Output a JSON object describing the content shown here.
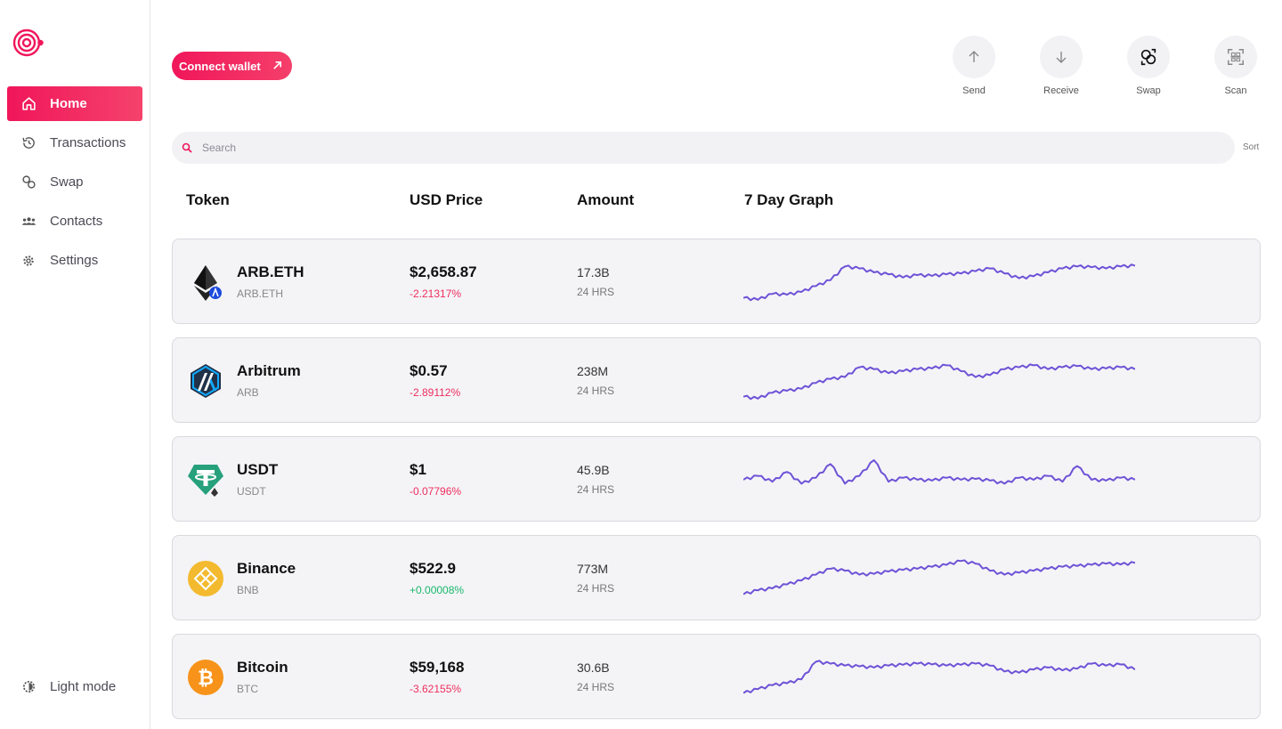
{
  "sidebar": {
    "items": [
      {
        "label": "Home",
        "icon": "home-icon",
        "active": true
      },
      {
        "label": "Transactions",
        "icon": "history-icon",
        "active": false
      },
      {
        "label": "Swap",
        "icon": "swap-icon",
        "active": false
      },
      {
        "label": "Contacts",
        "icon": "contacts-icon",
        "active": false
      },
      {
        "label": "Settings",
        "icon": "gear-icon",
        "active": false
      }
    ],
    "theme_toggle": {
      "label": "Light mode",
      "icon": "theme-icon"
    }
  },
  "header": {
    "connect_label": "Connect wallet",
    "actions": [
      {
        "label": "Send",
        "icon": "arrow-up-icon"
      },
      {
        "label": "Receive",
        "icon": "arrow-down-icon"
      },
      {
        "label": "Swap",
        "icon": "swap-icon"
      },
      {
        "label": "Scan",
        "icon": "qr-scan-icon"
      }
    ]
  },
  "search": {
    "placeholder": "Search",
    "value": "",
    "sort_label": "Sort"
  },
  "table": {
    "headers": {
      "token": "Token",
      "price": "USD Price",
      "amount": "Amount",
      "graph": "7 Day Graph"
    },
    "rows": [
      {
        "name": "ARB.ETH",
        "symbol": "ARB.ETH",
        "price": "$2,658.87",
        "change": "-2.21317%",
        "direction": "neg",
        "amount": "17.3B",
        "period": "24 HRS",
        "logo": "eth-arbitrum-icon",
        "trend": [
          0.1,
          0.05,
          0.2,
          0.18,
          0.25,
          0.4,
          0.55,
          0.9,
          0.85,
          0.75,
          0.7,
          0.62,
          0.68,
          0.66,
          0.7,
          0.72,
          0.78,
          0.85,
          0.72,
          0.6,
          0.65,
          0.75,
          0.85,
          0.9,
          0.88,
          0.85,
          0.9,
          0.92
        ]
      },
      {
        "name": "Arbitrum",
        "symbol": "ARB",
        "price": "$0.57",
        "change": "-2.89112%",
        "direction": "neg",
        "amount": "238M",
        "period": "24 HRS",
        "logo": "arbitrum-icon",
        "trend": [
          0.1,
          0.05,
          0.2,
          0.25,
          0.3,
          0.45,
          0.55,
          0.6,
          0.85,
          0.8,
          0.7,
          0.75,
          0.8,
          0.82,
          0.9,
          0.75,
          0.6,
          0.65,
          0.8,
          0.85,
          0.9,
          0.8,
          0.85,
          0.88,
          0.8,
          0.82,
          0.85,
          0.8
        ]
      },
      {
        "name": "USDT",
        "symbol": "USDT",
        "price": "$1",
        "change": "-0.07796%",
        "direction": "neg",
        "amount": "45.9B",
        "period": "24 HRS",
        "logo": "tether-icon",
        "trend": [
          0.5,
          0.6,
          0.45,
          0.7,
          0.4,
          0.55,
          0.9,
          0.4,
          0.6,
          1.0,
          0.45,
          0.55,
          0.5,
          0.48,
          0.55,
          0.5,
          0.52,
          0.48,
          0.4,
          0.55,
          0.5,
          0.6,
          0.45,
          0.85,
          0.5,
          0.48,
          0.55,
          0.5
        ]
      },
      {
        "name": "Binance",
        "symbol": "BNB",
        "price": "$522.9",
        "change": "+0.00008%",
        "direction": "pos",
        "amount": "773M",
        "period": "24 HRS",
        "logo": "bnb-icon",
        "trend": [
          0.1,
          0.2,
          0.25,
          0.35,
          0.45,
          0.6,
          0.75,
          0.7,
          0.6,
          0.62,
          0.68,
          0.72,
          0.75,
          0.8,
          0.85,
          0.95,
          0.88,
          0.7,
          0.6,
          0.65,
          0.7,
          0.75,
          0.8,
          0.82,
          0.85,
          0.88,
          0.86,
          0.9
        ]
      },
      {
        "name": "Bitcoin",
        "symbol": "BTC",
        "price": "$59,168",
        "change": "-3.62155%",
        "direction": "neg",
        "amount": "30.6B",
        "period": "24 HRS",
        "logo": "bitcoin-icon",
        "trend": [
          0.1,
          0.2,
          0.3,
          0.35,
          0.45,
          0.9,
          0.85,
          0.8,
          0.78,
          0.75,
          0.8,
          0.82,
          0.85,
          0.83,
          0.8,
          0.82,
          0.85,
          0.8,
          0.65,
          0.62,
          0.7,
          0.75,
          0.68,
          0.72,
          0.85,
          0.8,
          0.83,
          0.7
        ]
      }
    ]
  },
  "colors": {
    "accent": "#f0165a",
    "sparkline": "#6e52d6",
    "negative": "#ef2e5c",
    "positive": "#17b86a"
  }
}
